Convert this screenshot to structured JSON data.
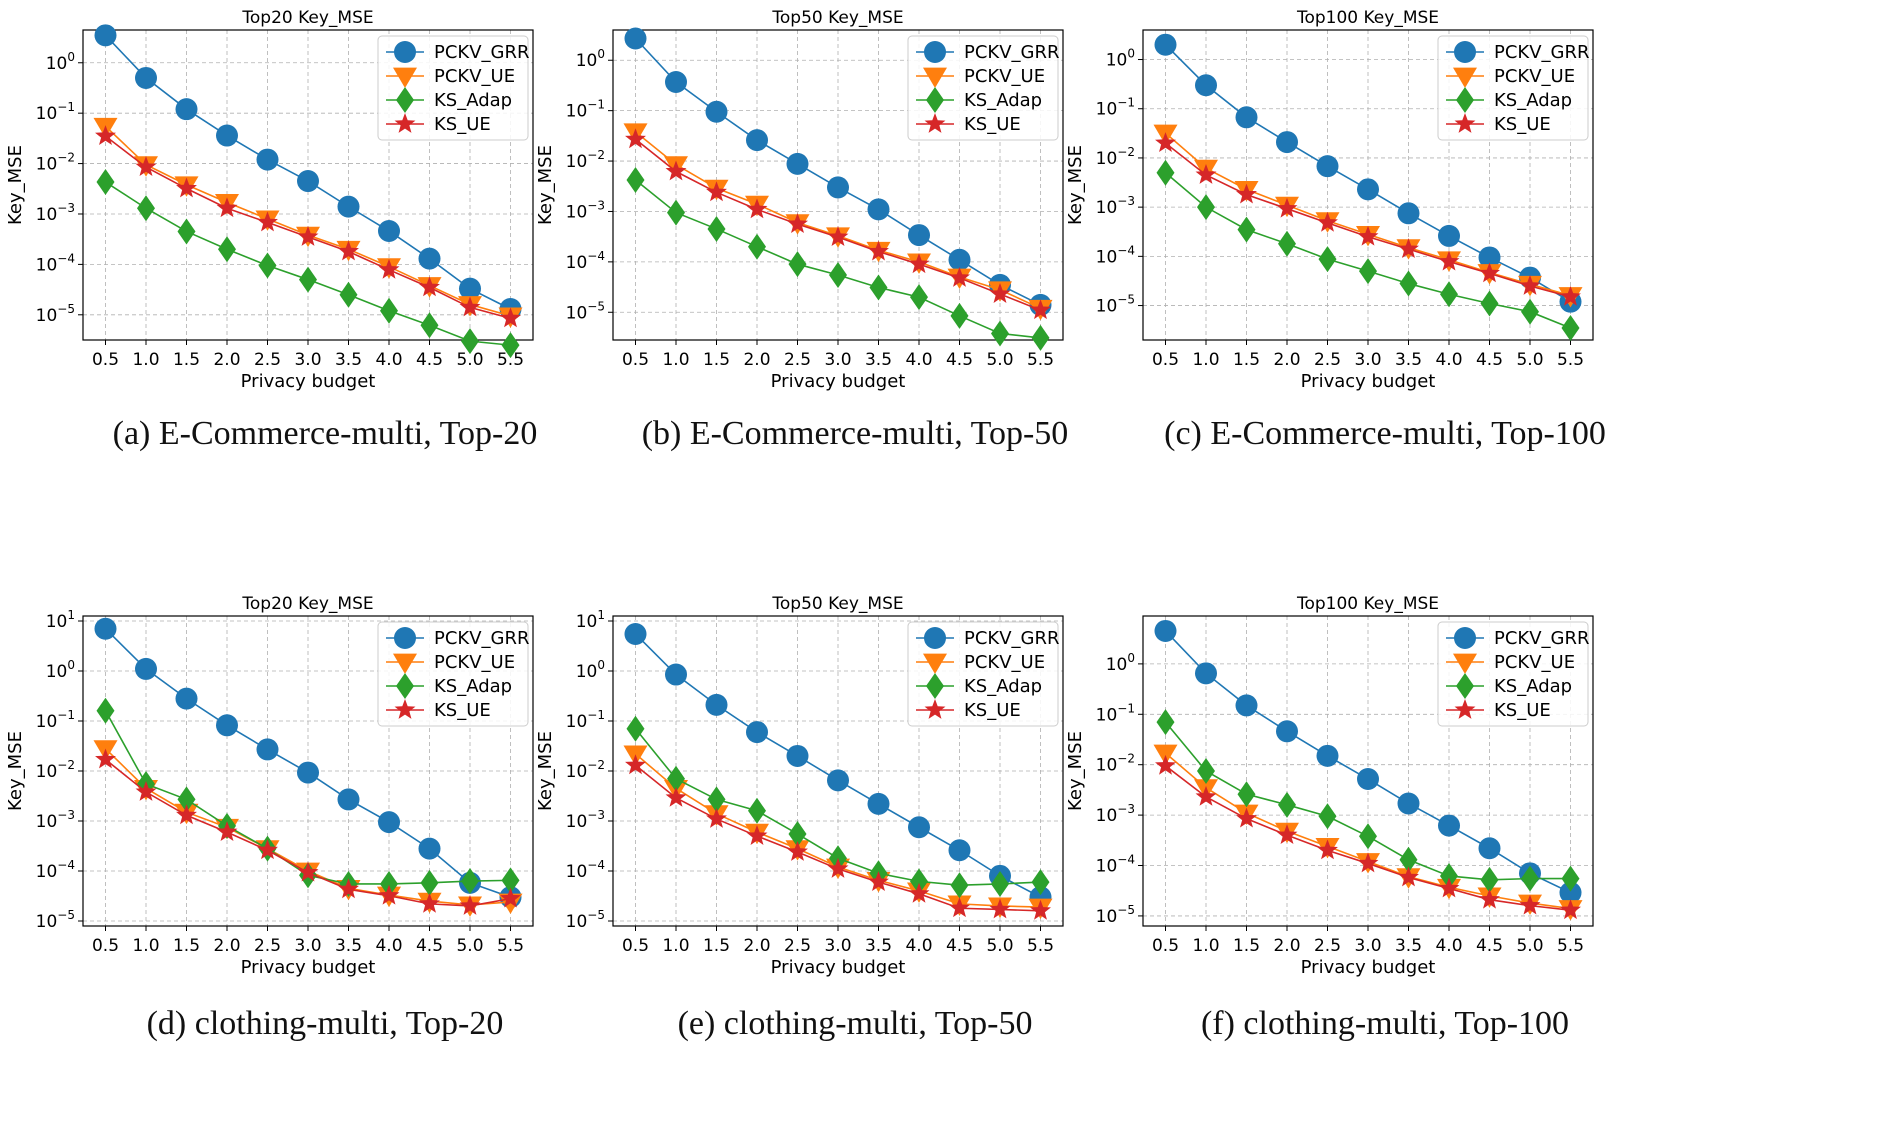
{
  "colors": {
    "PCKV_GRR": "#1f77b4",
    "PCKV_UE": "#ff7f0e",
    "KS_Adap": "#2ca02c",
    "KS_UE": "#d62728"
  },
  "marker_kinds": {
    "PCKV_GRR": "circle",
    "PCKV_UE": "triangle-down",
    "KS_Adap": "diamond",
    "KS_UE": "star"
  },
  "chart_data": [
    {
      "type": "line",
      "panel": "a",
      "caption": "(a)  E-Commerce-multi, Top-20",
      "title": "Top20 Key_MSE",
      "xlabel": "Privacy budget",
      "ylabel": "Key_MSE",
      "yscale": "log",
      "ylim_exp": [
        -5.5,
        0.65
      ],
      "ytick_exps": [
        -5,
        -4,
        -3,
        -2,
        -1,
        0
      ],
      "ytick_labels": [
        "10",
        "10",
        "10",
        "10",
        "10",
        "10"
      ],
      "ytick_sups": [
        "−5",
        "−4",
        "−3",
        "−2",
        "−1",
        "0"
      ],
      "categories": [
        "0.5",
        "1.0",
        "1.5",
        "2.0",
        "2.5",
        "3.0",
        "3.5",
        "4.0",
        "4.5",
        "5.0",
        "5.5"
      ],
      "series": [
        {
          "name": "PCKV_GRR",
          "values": [
            3.5,
            0.5,
            0.12,
            0.036,
            0.012,
            0.0045,
            0.0014,
            0.00046,
            0.00013,
            3.3e-05,
            1.3e-05
          ]
        },
        {
          "name": "PCKV_UE",
          "values": [
            0.055,
            0.0095,
            0.0038,
            0.0017,
            0.0008,
            0.00038,
            0.0002,
            9e-05,
            3.8e-05,
            1.6e-05,
            9.5e-06
          ]
        },
        {
          "name": "KS_Adap",
          "values": [
            0.0043,
            0.0013,
            0.00045,
            0.0002,
            9.5e-05,
            5e-05,
            2.5e-05,
            1.2e-05,
            6.2e-06,
            3e-06,
            2.5e-06
          ]
        },
        {
          "name": "KS_UE",
          "values": [
            0.035,
            0.0085,
            0.0032,
            0.0013,
            0.00068,
            0.00035,
            0.00018,
            7.8e-05,
            3.5e-05,
            1.4e-05,
            8.5e-06
          ]
        }
      ]
    },
    {
      "type": "line",
      "panel": "b",
      "caption": "(b)  E-Commerce-multi, Top-50",
      "title": "Top50 Key_MSE",
      "xlabel": "Privacy budget",
      "ylabel": "Key_MSE",
      "yscale": "log",
      "ylim_exp": [
        -5.55,
        0.6
      ],
      "ytick_exps": [
        -5,
        -4,
        -3,
        -2,
        -1,
        0
      ],
      "ytick_labels": [
        "10",
        "10",
        "10",
        "10",
        "10",
        "10"
      ],
      "ytick_sups": [
        "−5",
        "−4",
        "−3",
        "−2",
        "−1",
        "0"
      ],
      "categories": [
        "0.5",
        "1.0",
        "1.5",
        "2.0",
        "2.5",
        "3.0",
        "3.5",
        "4.0",
        "4.5",
        "5.0",
        "5.5"
      ],
      "series": [
        {
          "name": "PCKV_GRR",
          "values": [
            2.7,
            0.37,
            0.095,
            0.026,
            0.0088,
            0.003,
            0.0011,
            0.00034,
            0.00011,
            3.5e-05,
            1.4e-05
          ]
        },
        {
          "name": "PCKV_UE",
          "values": [
            0.038,
            0.0085,
            0.0029,
            0.0014,
            0.0006,
            0.00033,
            0.00017,
            0.0001,
            5e-05,
            2.8e-05,
            1.2e-05
          ]
        },
        {
          "name": "KS_Adap",
          "values": [
            0.0042,
            0.00095,
            0.00045,
            0.0002,
            9e-05,
            5.5e-05,
            3.1e-05,
            2e-05,
            8.5e-06,
            3.8e-06,
            3.1e-06
          ]
        },
        {
          "name": "KS_UE",
          "values": [
            0.027,
            0.0062,
            0.0024,
            0.0011,
            0.00056,
            0.00031,
            0.00016,
            9e-05,
            4.8e-05,
            2.3e-05,
            1.1e-05
          ]
        }
      ]
    },
    {
      "type": "line",
      "panel": "c",
      "caption": "(c)  E-Commerce-multi, Top-100",
      "title": "Top100 Key_MSE",
      "xlabel": "Privacy budget",
      "ylabel": "Key_MSE",
      "yscale": "log",
      "ylim_exp": [
        -5.7,
        0.6
      ],
      "ytick_exps": [
        -5,
        -4,
        -3,
        -2,
        -1,
        0
      ],
      "ytick_labels": [
        "10",
        "10",
        "10",
        "10",
        "10",
        "10"
      ],
      "ytick_sups": [
        "−5",
        "−4",
        "−3",
        "−2",
        "−1",
        "0"
      ],
      "categories": [
        "0.5",
        "1.0",
        "1.5",
        "2.0",
        "2.5",
        "3.0",
        "3.5",
        "4.0",
        "4.5",
        "5.0",
        "5.5"
      ],
      "series": [
        {
          "name": "PCKV_GRR",
          "values": [
            2.0,
            0.3,
            0.067,
            0.021,
            0.0068,
            0.0023,
            0.00075,
            0.00026,
            9.5e-05,
            3.7e-05,
            1.2e-05
          ]
        },
        {
          "name": "PCKV_UE",
          "values": [
            0.032,
            0.0062,
            0.0023,
            0.0011,
            0.00053,
            0.00028,
            0.00015,
            8.5e-05,
            4.7e-05,
            2.7e-05,
            1.6e-05
          ]
        },
        {
          "name": "KS_Adap",
          "values": [
            0.005,
            0.001,
            0.00035,
            0.00018,
            8.8e-05,
            5e-05,
            2.8e-05,
            1.7e-05,
            1.1e-05,
            7.5e-06,
            3.5e-06
          ]
        },
        {
          "name": "KS_UE",
          "values": [
            0.02,
            0.0045,
            0.0018,
            0.00093,
            0.00048,
            0.00025,
            0.00014,
            7.8e-05,
            4.5e-05,
            2.5e-05,
            1.5e-05
          ]
        }
      ]
    },
    {
      "type": "line",
      "panel": "d",
      "caption": "(d)  clothing-multi, Top-20",
      "title": "Top20 Key_MSE",
      "xlabel": "Privacy budget",
      "ylabel": "Key_MSE",
      "yscale": "log",
      "ylim_exp": [
        -5.1,
        1.1
      ],
      "ytick_exps": [
        -5,
        -4,
        -3,
        -2,
        -1,
        0,
        1
      ],
      "ytick_labels": [
        "10",
        "10",
        "10",
        "10",
        "10",
        "10",
        "10"
      ],
      "ytick_sups": [
        "−5",
        "−4",
        "−3",
        "−2",
        "−1",
        "0",
        "1"
      ],
      "categories": [
        "0.5",
        "1.0",
        "1.5",
        "2.0",
        "2.5",
        "3.0",
        "3.5",
        "4.0",
        "4.5",
        "5.0",
        "5.5"
      ],
      "series": [
        {
          "name": "PCKV_GRR",
          "values": [
            7.0,
            1.1,
            0.28,
            0.082,
            0.027,
            0.0093,
            0.0027,
            0.00095,
            0.00028,
            5.8e-05,
            3e-05
          ]
        },
        {
          "name": "PCKV_UE",
          "values": [
            0.028,
            0.0045,
            0.0015,
            0.00075,
            0.00028,
            0.0001,
            4.5e-05,
            3.3e-05,
            2.5e-05,
            2.1e-05,
            2.4e-05
          ]
        },
        {
          "name": "KS_Adap",
          "values": [
            0.16,
            0.0055,
            0.0027,
            0.0008,
            0.00028,
            8.2e-05,
            5.5e-05,
            5.5e-05,
            5.8e-05,
            6.3e-05,
            6.5e-05
          ]
        },
        {
          "name": "KS_UE",
          "values": [
            0.017,
            0.0038,
            0.0013,
            0.0006,
            0.00026,
            9.3e-05,
            4.3e-05,
            3.2e-05,
            2.2e-05,
            2e-05,
            2.8e-05
          ]
        }
      ]
    },
    {
      "type": "line",
      "panel": "e",
      "caption": "(e)  clothing-multi, Top-50",
      "title": "Top50 Key_MSE",
      "xlabel": "Privacy budget",
      "ylabel": "Key_MSE",
      "yscale": "log",
      "ylim_exp": [
        -5.1,
        1.1
      ],
      "ytick_exps": [
        -5,
        -4,
        -3,
        -2,
        -1,
        0,
        1
      ],
      "ytick_labels": [
        "10",
        "10",
        "10",
        "10",
        "10",
        "10",
        "10"
      ],
      "ytick_sups": [
        "−5",
        "−4",
        "−3",
        "−2",
        "−1",
        "0",
        "1"
      ],
      "categories": [
        "0.5",
        "1.0",
        "1.5",
        "2.0",
        "2.5",
        "3.0",
        "3.5",
        "4.0",
        "4.5",
        "5.0",
        "5.5"
      ],
      "series": [
        {
          "name": "PCKV_GRR",
          "values": [
            5.5,
            0.85,
            0.21,
            0.06,
            0.02,
            0.0065,
            0.0022,
            0.00075,
            0.00026,
            8e-05,
            3e-05
          ]
        },
        {
          "name": "PCKV_UE",
          "values": [
            0.022,
            0.0045,
            0.0014,
            0.0006,
            0.00028,
            0.00012,
            6.5e-05,
            4e-05,
            2.2e-05,
            2e-05,
            1.9e-05
          ]
        },
        {
          "name": "KS_Adap",
          "values": [
            0.07,
            0.007,
            0.0027,
            0.0016,
            0.00055,
            0.00018,
            9e-05,
            6.2e-05,
            5.2e-05,
            5.5e-05,
            6e-05
          ]
        },
        {
          "name": "KS_UE",
          "values": [
            0.013,
            0.0029,
            0.0011,
            0.0005,
            0.00024,
            0.00011,
            6e-05,
            3.5e-05,
            1.8e-05,
            1.7e-05,
            1.6e-05
          ]
        }
      ]
    },
    {
      "type": "line",
      "panel": "f",
      "caption": "(f)  clothing-multi, Top-100",
      "title": "Top100 Key_MSE",
      "xlabel": "Privacy budget",
      "ylabel": "Key_MSE",
      "yscale": "log",
      "ylim_exp": [
        -5.2,
        0.95
      ],
      "ytick_exps": [
        -5,
        -4,
        -3,
        -2,
        -1,
        0
      ],
      "ytick_labels": [
        "10",
        "10",
        "10",
        "10",
        "10",
        "10"
      ],
      "ytick_sups": [
        "−5",
        "−4",
        "−3",
        "−2",
        "−1",
        "0"
      ],
      "categories": [
        "0.5",
        "1.0",
        "1.5",
        "2.0",
        "2.5",
        "3.0",
        "3.5",
        "4.0",
        "4.5",
        "5.0",
        "5.5"
      ],
      "series": [
        {
          "name": "PCKV_GRR",
          "values": [
            4.5,
            0.65,
            0.15,
            0.046,
            0.015,
            0.0052,
            0.0017,
            0.00062,
            0.00022,
            7e-05,
            2.9e-05
          ]
        },
        {
          "name": "PCKV_UE",
          "values": [
            0.017,
            0.0035,
            0.0011,
            0.00048,
            0.00024,
            0.00012,
            6e-05,
            3.7e-05,
            2.5e-05,
            1.8e-05,
            1.4e-05
          ]
        },
        {
          "name": "KS_Adap",
          "values": [
            0.07,
            0.0075,
            0.0026,
            0.0016,
            0.00095,
            0.00038,
            0.00013,
            6.2e-05,
            5.2e-05,
            5.5e-05,
            5.5e-05
          ]
        },
        {
          "name": "KS_UE",
          "values": [
            0.0095,
            0.0023,
            0.00085,
            0.0004,
            0.0002,
            0.00011,
            5.8e-05,
            3.5e-05,
            2.1e-05,
            1.6e-05,
            1.3e-05
          ]
        }
      ]
    }
  ]
}
